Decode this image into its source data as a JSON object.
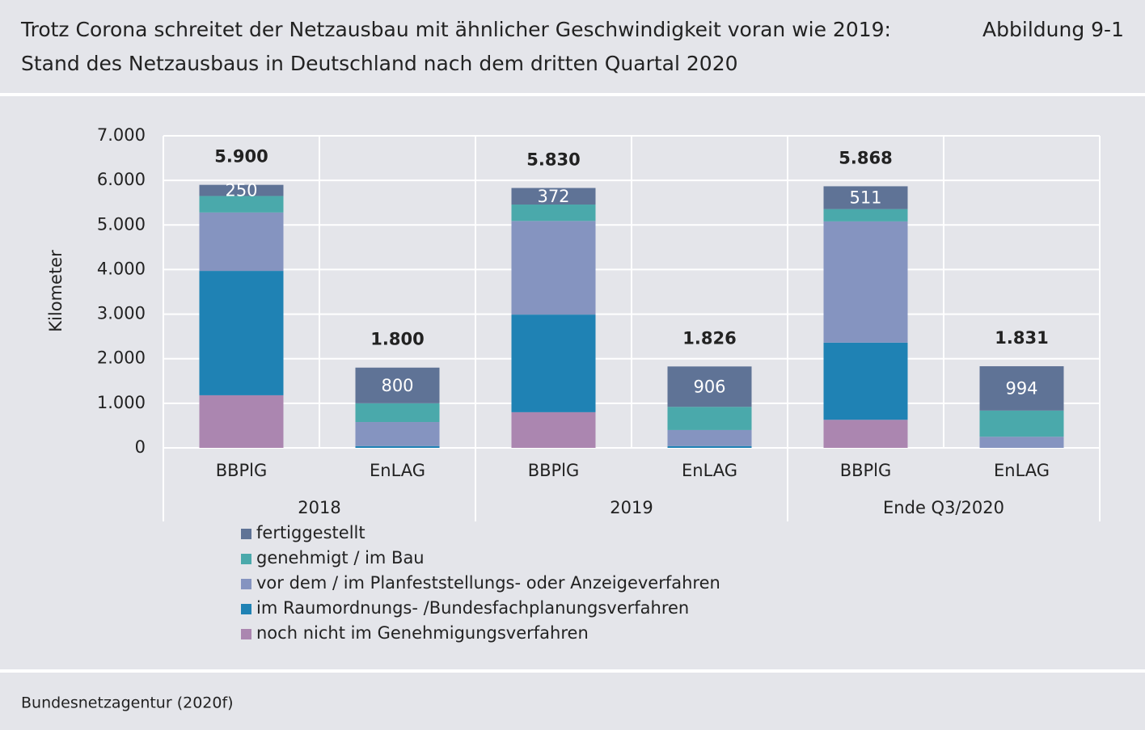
{
  "chart_data": {
    "type": "bar",
    "title": "Trotz Corona schreitet der Netzausbau mit ähnlicher Geschwindigkeit voran wie 2019:",
    "subtitle": "Stand des Netzausbaus in Deutschland nach dem dritten Quartal 2020",
    "figure_label": "Abbildung 9-1",
    "source": "Bundesnetzagentur (2020f)",
    "y_label": "Kilometer",
    "stacked": true,
    "categories": [
      "BBPlG",
      "EnLAG",
      "BBPlG",
      "EnLAG",
      "BBPlG",
      "EnLAG"
    ],
    "groups": [
      "2018",
      "2019",
      "Ende Q3/2020"
    ],
    "series": [
      {
        "name": "noch nicht im Genehmigungsverfahren",
        "color": "#ab86b0",
        "values": [
          1180,
          0,
          800,
          0,
          630,
          0
        ]
      },
      {
        "name": "im Raumordnungs- /Bundesfachplanungsverfahren",
        "color": "#1f82b4",
        "values": [
          2790,
          40,
          2190,
          40,
          1730,
          0
        ]
      },
      {
        "name": "vor dem / im Planfeststellungs- oder Anzeigeverfahren",
        "color": "#8594c0",
        "values": [
          1310,
          540,
          2100,
          360,
          2720,
          250
        ]
      },
      {
        "name": "genehmigt / im Bau",
        "color": "#4aa9ab",
        "values": [
          370,
          420,
          368,
          520,
          277,
          587
        ]
      },
      {
        "name": "fertiggestellt",
        "color": "#5f7396",
        "values": [
          250,
          800,
          372,
          906,
          511,
          994
        ]
      }
    ],
    "totals": {
      "values": [
        5900,
        1800,
        5830,
        1826,
        5868,
        1831
      ],
      "value_labels": [
        "5.900",
        "1.800",
        "5.830",
        "1.826",
        "5.868",
        "1.831"
      ]
    },
    "ylim": [
      0,
      7000
    ],
    "yticks": [
      0,
      {
        "value": 1000,
        "label": "1.000"
      },
      {
        "value": 2000,
        "label": "2.000"
      },
      {
        "value": 3000,
        "label": "3.000"
      },
      {
        "value": 4000,
        "label": "4.000"
      },
      {
        "value": 5000,
        "label": "5.000"
      },
      {
        "value": 6000,
        "label": "6.000"
      },
      {
        "value": 7000,
        "label": "7.000"
      }
    ],
    "grid": true,
    "legend": "bottom"
  }
}
